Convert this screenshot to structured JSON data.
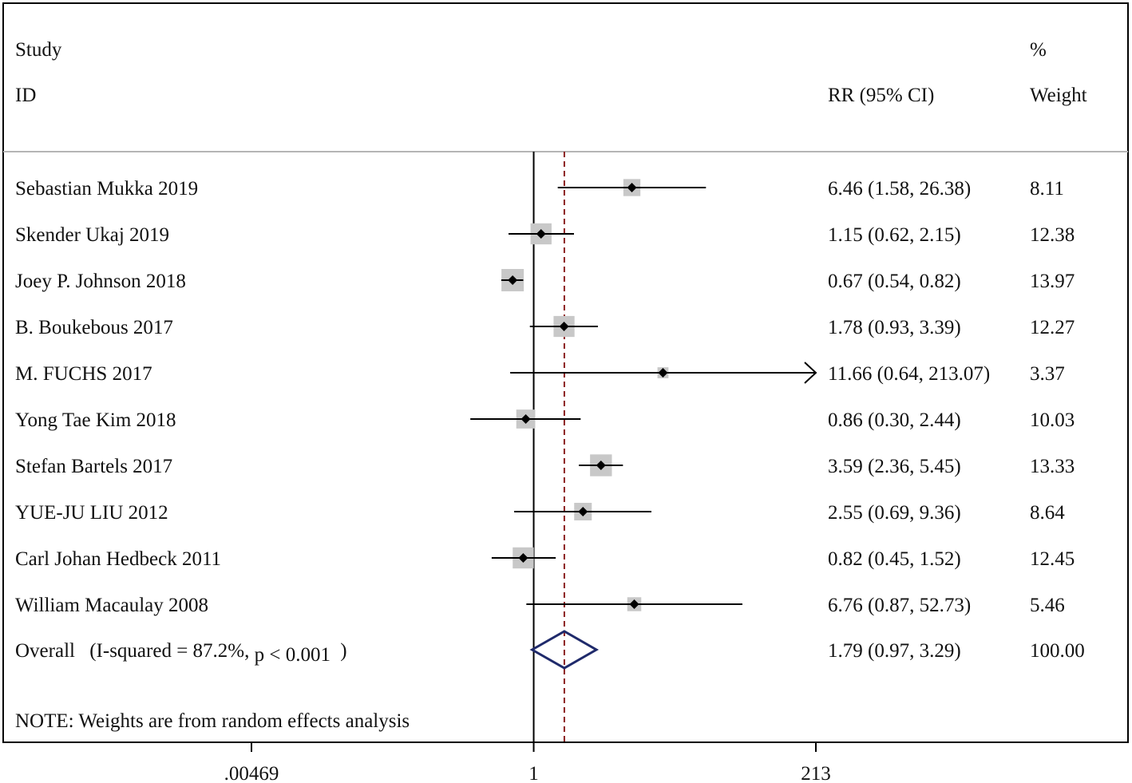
{
  "chart_data": {
    "type": "forest",
    "header": {
      "study_line1": "Study",
      "study_line2": "ID",
      "effect_header": "RR (95% CI)",
      "weight_line1": "%",
      "weight_line2": "Weight"
    },
    "studies": [
      {
        "label": "Sebastian Mukka 2019",
        "rr": 6.46,
        "lo": 1.58,
        "hi": 26.38,
        "ci_text": "6.46 (1.58, 26.38)",
        "weight": 8.11,
        "weight_text": "8.11"
      },
      {
        "label": "Skender Ukaj 2019",
        "rr": 1.15,
        "lo": 0.62,
        "hi": 2.15,
        "ci_text": "1.15 (0.62, 2.15)",
        "weight": 12.38,
        "weight_text": "12.38"
      },
      {
        "label": "Joey P. Johnson 2018",
        "rr": 0.67,
        "lo": 0.54,
        "hi": 0.82,
        "ci_text": "0.67 (0.54, 0.82)",
        "weight": 13.97,
        "weight_text": "13.97"
      },
      {
        "label": "B. Boukebous 2017",
        "rr": 1.78,
        "lo": 0.93,
        "hi": 3.39,
        "ci_text": "1.78 (0.93, 3.39)",
        "weight": 12.27,
        "weight_text": "12.27"
      },
      {
        "label": "M. FUCHS 2017",
        "rr": 11.66,
        "lo": 0.64,
        "hi": 213.07,
        "ci_text": "11.66 (0.64, 213.07)",
        "weight": 3.37,
        "weight_text": "3.37",
        "arrow_right": true
      },
      {
        "label": "Yong Tae Kim 2018",
        "rr": 0.86,
        "lo": 0.3,
        "hi": 2.44,
        "ci_text": "0.86 (0.30, 2.44)",
        "weight": 10.03,
        "weight_text": "10.03"
      },
      {
        "label": "Stefan Bartels 2017",
        "rr": 3.59,
        "lo": 2.36,
        "hi": 5.45,
        "ci_text": "3.59 (2.36, 5.45)",
        "weight": 13.33,
        "weight_text": "13.33"
      },
      {
        "label": "YUE-JU LIU 2012",
        "rr": 2.55,
        "lo": 0.69,
        "hi": 9.36,
        "ci_text": "2.55 (0.69, 9.36)",
        "weight": 8.64,
        "weight_text": "8.64"
      },
      {
        "label": "Carl Johan Hedbeck 2011",
        "rr": 0.82,
        "lo": 0.45,
        "hi": 1.52,
        "ci_text": "0.82 (0.45, 1.52)",
        "weight": 12.45,
        "weight_text": "12.45"
      },
      {
        "label": "William Macaulay 2008",
        "rr": 6.76,
        "lo": 0.87,
        "hi": 52.73,
        "ci_text": "6.76 (0.87, 52.73)",
        "weight": 5.46,
        "weight_text": "5.46"
      }
    ],
    "overall": {
      "label": "Overall",
      "stat": "(I-squared = 87.2%,",
      "p_text": "p < 0.001",
      "p_close": ")",
      "rr": 1.79,
      "lo": 0.97,
      "hi": 3.29,
      "ci_text": "1.79 (0.97, 3.29)",
      "weight_text": "100.00"
    },
    "note": "NOTE: Weights are from random effects analysis",
    "x_scale": "log",
    "x_range": [
      0.00469,
      213
    ],
    "x_ticks": [
      0.00469,
      1,
      213
    ],
    "x_tick_labels": [
      ".00469",
      "1",
      "213"
    ],
    "null_line": 1,
    "colors": {
      "text": "#111111",
      "line": "#000000",
      "box": "#c8c8c8",
      "diamond": "#1f2a6b",
      "overall_line": "#8b2020",
      "separator": "#b5b5b5"
    }
  }
}
